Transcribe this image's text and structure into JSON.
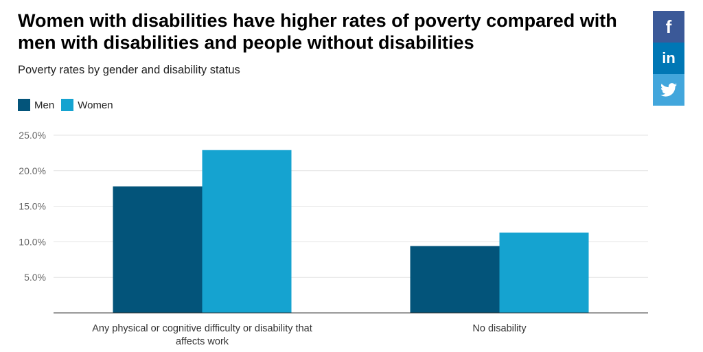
{
  "chart_data": {
    "type": "bar",
    "title": "Women with disabilities have higher rates of poverty compared with men with disabilities and people without disabilities",
    "subtitle": "Poverty rates by gender and disability status",
    "categories": [
      [
        "Any physical or cognitive difficulty or disability that",
        "affects work"
      ],
      [
        "No disability"
      ]
    ],
    "series": [
      {
        "name": "Men",
        "color": "#03547a",
        "values": [
          17.8,
          9.4
        ]
      },
      {
        "name": "Women",
        "color": "#15a3d0",
        "values": [
          22.9,
          11.3
        ]
      }
    ],
    "yticks": [
      "5.0%",
      "10.0%",
      "15.0%",
      "20.0%",
      "25.0%"
    ],
    "ytick_values": [
      5,
      10,
      15,
      20,
      25
    ],
    "ylim": [
      0,
      25
    ],
    "grid": true,
    "legend_position": "top-left"
  },
  "share": {
    "buttons": [
      {
        "name": "facebook",
        "glyph": "f",
        "color": "#3b5998"
      },
      {
        "name": "linkedin",
        "glyph": "in",
        "color": "#0077b5"
      },
      {
        "name": "twitter",
        "glyph": "",
        "color": "#42a6dc"
      }
    ]
  }
}
